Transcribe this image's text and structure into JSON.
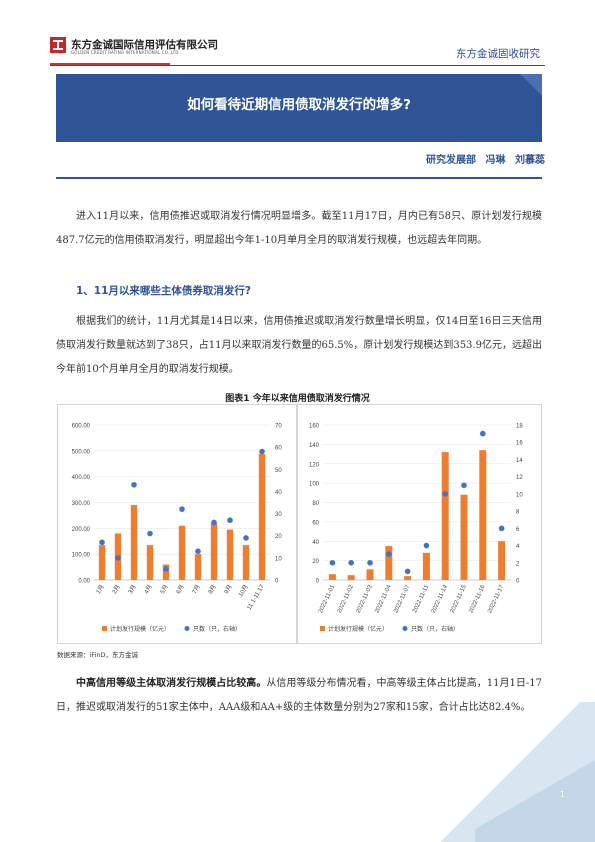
{
  "header": {
    "logo_cn": "东方金诚国际信用评估有限公司",
    "logo_en": "GOLDEN CREDIT RATING INTERNATIONAL CO.,LTD.",
    "brand": "东方金诚固收研究"
  },
  "banner": {
    "title": "如何看待近期信用债取消发行的增多?"
  },
  "authors": {
    "text": "研究发展部 冯琳 刘慕蕊"
  },
  "body": {
    "p1": "进入11月以来，信用债推迟或取消发行情况明显增多。截至11月17日，月内已有58只、原计划发行规模487.7亿元的信用债取消发行，明显超出今年1-10月单月全月的取消发行规模，也远超去年同期。",
    "section1": "1、11月以来哪些主体债券取消发行?",
    "p2": "根据我们的统计，11月尤其是14日以来，信用债推迟或取消发行数量增长明显，仅14日至16日三天信用债取消发行数量就达到了38只，占11月以来取消发行数量的65.5%，原计划发行规模达到353.9亿元，远超出今年前10个月单月全月的取消发行规模。",
    "figure_title": "图表1 今年以来信用债取消发行情况",
    "source": "数据来源：iFinD，东方金诚",
    "p3_bold": "中高信用等级主体取消发行规模占比较高。",
    "p3_rest": "从信用等级分布情况看，中高等级主体占比提高，11月1日-17日，推迟或取消发行的51家主体中，AAA级和AA+级的主体数量分别为27家和15家，合计占比达82.4%。"
  },
  "page_number": "1",
  "colors": {
    "bar": "#ed7d31",
    "dot": "#4472c4",
    "banner": "#2f5597"
  },
  "chart_data": [
    {
      "type": "bar",
      "categories": [
        "1月",
        "2月",
        "3月",
        "4月",
        "5月",
        "6月",
        "7月",
        "8月",
        "9月",
        "10月",
        "11.1-11.17"
      ],
      "series": [
        {
          "name": "计划发行规模（亿元）",
          "axis": "left",
          "kind": "bar",
          "values": [
            135,
            180,
            290,
            135,
            60,
            210,
            100,
            220,
            195,
            135,
            487.7
          ]
        },
        {
          "name": "只数（只，右轴）",
          "axis": "right",
          "kind": "dot",
          "values": [
            17,
            10,
            43,
            21,
            5,
            32,
            13,
            26,
            27,
            19,
            58
          ]
        }
      ],
      "ylim_left": [
        0,
        600
      ],
      "yticks_left": [
        "0.00",
        "100.00",
        "200.00",
        "300.00",
        "400.00",
        "500.00",
        "600.00"
      ],
      "ylim_right": [
        0,
        70
      ],
      "yticks_right": [
        "0",
        "10",
        "20",
        "30",
        "40",
        "50",
        "60",
        "70"
      ],
      "legend": "bottom"
    },
    {
      "type": "bar",
      "categories": [
        "2022-11-01",
        "2022-11-02",
        "2022-11-03",
        "2022-11-04",
        "2022-11-07",
        "2022-11-11",
        "2022-11-14",
        "2022-11-15",
        "2022-11-16",
        "2022-11-17"
      ],
      "series": [
        {
          "name": "计划发行规模（亿元）",
          "axis": "left",
          "kind": "bar",
          "values": [
            6,
            5,
            11,
            35,
            4,
            28,
            132,
            88,
            134,
            40
          ]
        },
        {
          "name": "只数（只，右轴）",
          "axis": "right",
          "kind": "dot",
          "values": [
            2,
            2,
            2,
            3,
            1,
            4,
            10,
            11,
            17,
            6
          ]
        }
      ],
      "ylim_left": [
        0,
        160
      ],
      "yticks_left": [
        "0",
        "20",
        "40",
        "60",
        "80",
        "100",
        "120",
        "140",
        "160"
      ],
      "ylim_right": [
        0,
        18
      ],
      "yticks_right": [
        "0",
        "2",
        "4",
        "6",
        "8",
        "10",
        "12",
        "14",
        "16",
        "18"
      ],
      "legend": "bottom"
    }
  ]
}
